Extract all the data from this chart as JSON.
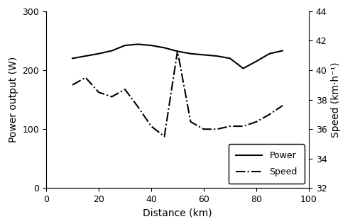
{
  "power_x": [
    10,
    20,
    25,
    30,
    35,
    40,
    45,
    50,
    55,
    60,
    65,
    70,
    75,
    80,
    85,
    90
  ],
  "power_y": [
    220,
    228,
    233,
    242,
    244,
    242,
    238,
    232,
    228,
    226,
    224,
    220,
    203,
    215,
    228,
    233
  ],
  "speed_x": [
    10,
    15,
    20,
    25,
    30,
    35,
    40,
    45,
    50,
    55,
    60,
    65,
    70,
    75,
    80,
    85,
    90
  ],
  "speed_y": [
    39.0,
    39.5,
    38.5,
    38.2,
    38.7,
    37.5,
    36.2,
    35.5,
    41.3,
    36.5,
    36.0,
    36.0,
    36.2,
    36.2,
    36.5,
    37.0,
    37.6
  ],
  "power_ylim": [
    0,
    300
  ],
  "speed_ylim": [
    32,
    44
  ],
  "xlim": [
    0,
    100
  ],
  "xlabel": "Distance (km)",
  "ylabel_left": "Power output (W)",
  "ylabel_right": "Speed (km·h⁻¹)",
  "legend_power": "Power",
  "legend_speed": "Speed",
  "xticks": [
    0,
    20,
    40,
    60,
    80,
    100
  ],
  "yticks_left": [
    0,
    100,
    200,
    300
  ],
  "yticks_right": [
    32,
    34,
    36,
    38,
    40,
    42,
    44
  ],
  "line_color": "#000000",
  "bg_color": "#ffffff",
  "figsize": [
    5.0,
    3.16
  ],
  "dpi": 100
}
